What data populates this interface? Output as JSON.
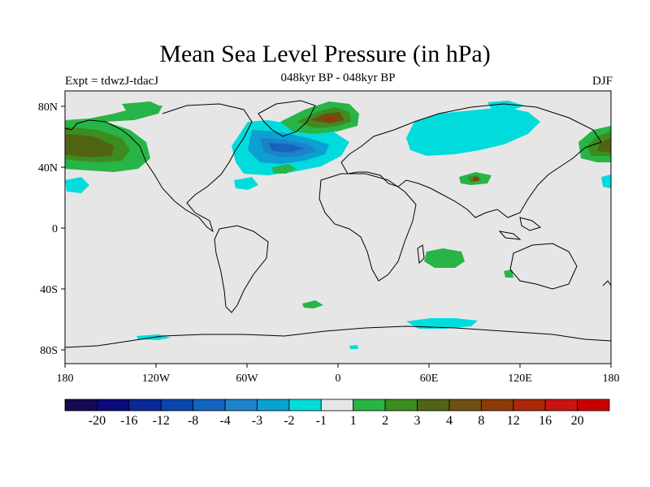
{
  "title": "Mean Sea Level Pressure (in hPa)",
  "experiment": "Expt = tdwzJ-tdacJ",
  "subtitle": "048kyr BP - 048kyr BP",
  "season": "DJF",
  "map": {
    "lon_labels": [
      "180",
      "120W",
      "60W",
      "0",
      "60E",
      "120E",
      "180"
    ],
    "lat_labels": [
      "80N",
      "40N",
      "0",
      "40S",
      "80S"
    ]
  },
  "colorbar": {
    "colors": [
      "#140a52",
      "#0a0a78",
      "#0a2896",
      "#0a46aa",
      "#1464be",
      "#1e82c8",
      "#0aa0d2",
      "#00dcdc",
      "#e6e6e6",
      "#28b446",
      "#3c8c1e",
      "#506414",
      "#6e5014",
      "#8c3c0a",
      "#aa280a",
      "#c81414",
      "#c80000"
    ],
    "labels": [
      "-20",
      "-16",
      "-12",
      "-8",
      "-4",
      "-3",
      "-2",
      "-1",
      "1",
      "2",
      "3",
      "4",
      "8",
      "12",
      "16",
      "20"
    ]
  }
}
